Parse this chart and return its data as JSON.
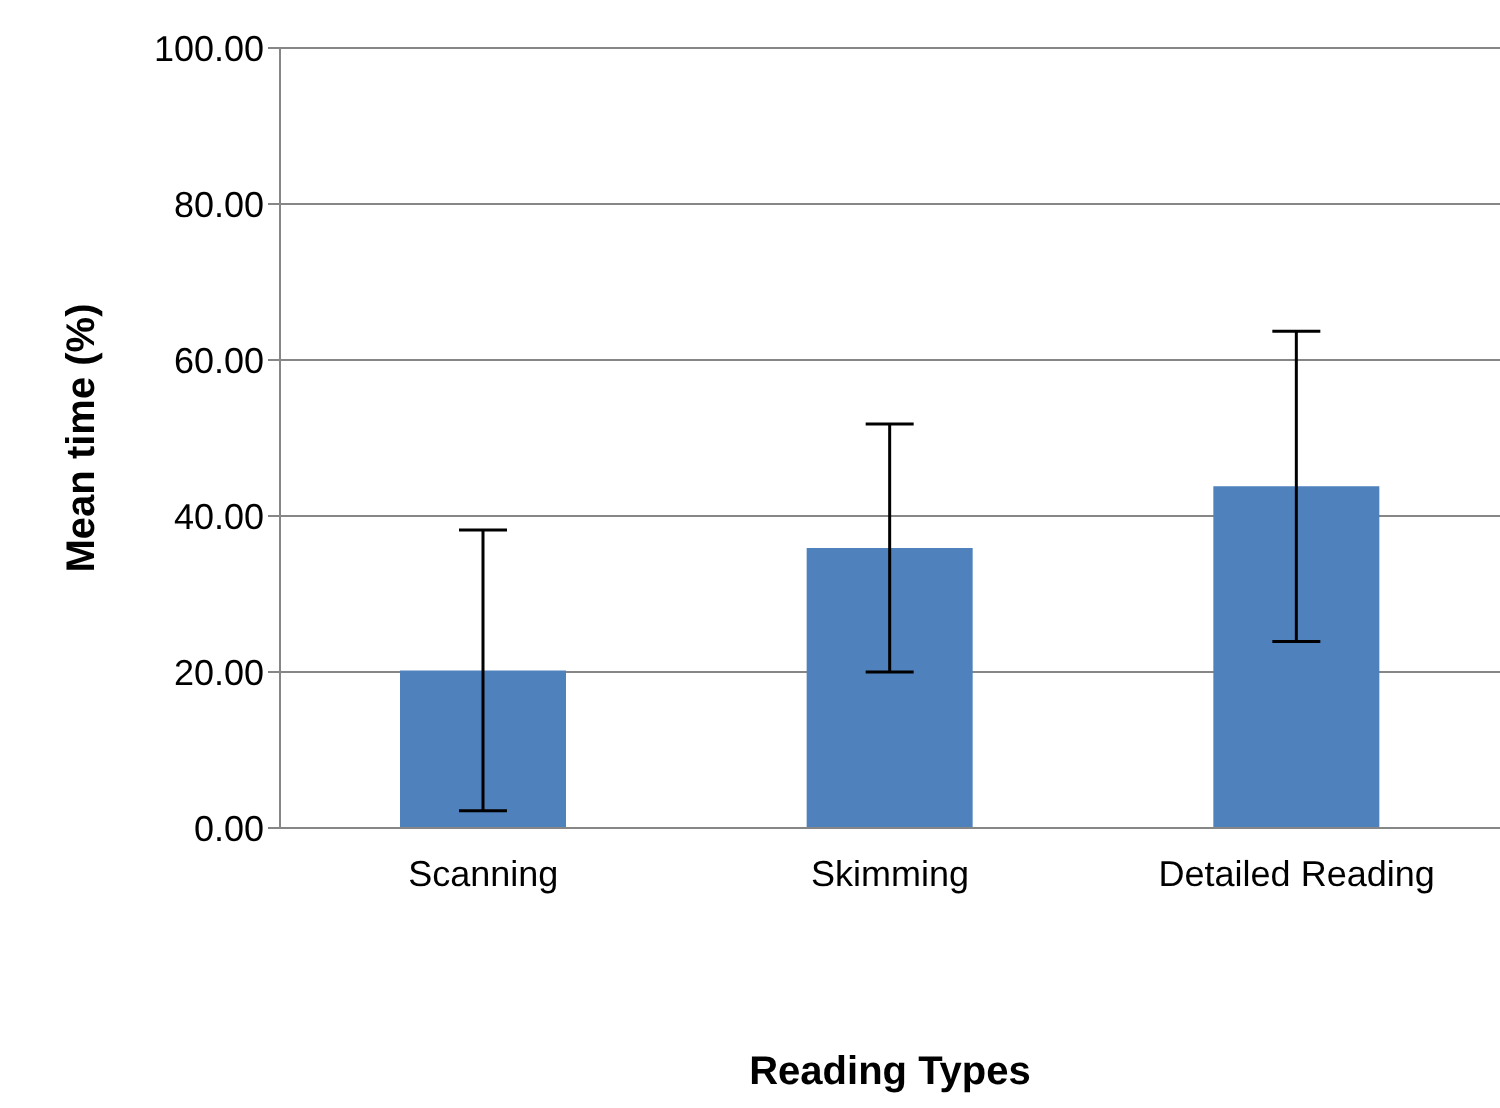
{
  "chart_data": {
    "type": "bar",
    "xlabel": "Reading Types",
    "ylabel": "Mean time (%)",
    "categories": [
      "Scanning",
      "Skimming",
      "Detailed Reading"
    ],
    "values": [
      20.2,
      35.9,
      43.8
    ],
    "errors": [
      18,
      15.9,
      19.9
    ],
    "color": "#4f81bd",
    "ylim": [
      0,
      100
    ],
    "yticks": [
      {
        "value": 0,
        "label": "0.00"
      },
      {
        "value": 20,
        "label": "20.00"
      },
      {
        "value": 40,
        "label": "40.00"
      },
      {
        "value": 60,
        "label": "60.00"
      },
      {
        "value": 80,
        "label": "80.00"
      },
      {
        "value": 100,
        "label": "100.00"
      }
    ],
    "grid": "y",
    "legend": false
  }
}
